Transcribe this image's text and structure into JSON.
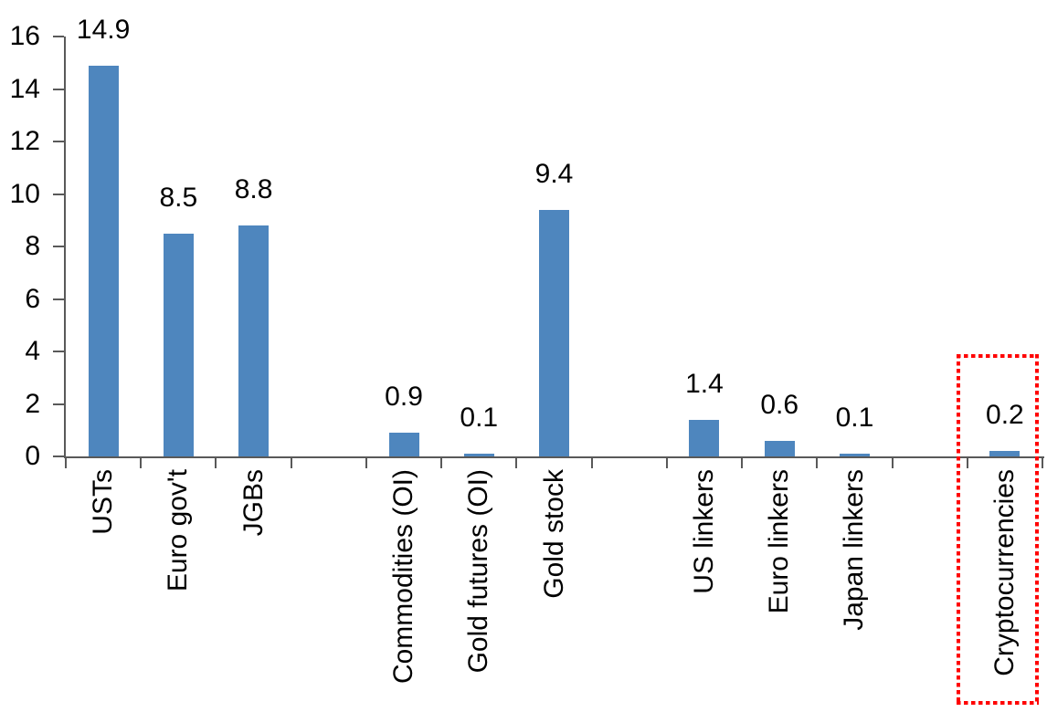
{
  "chart_data": {
    "type": "bar",
    "categories": [
      "USTs",
      "Euro gov't",
      "JGBs",
      "Commodities (OI)",
      "Gold futures (OI)",
      "Gold stock",
      "US linkers",
      "Euro linkers",
      "Japan linkers",
      "Cryptocurrencies"
    ],
    "values": [
      14.9,
      8.5,
      8.8,
      0.9,
      0.1,
      9.4,
      1.4,
      0.6,
      0.1,
      0.2
    ],
    "data_labels": [
      "14.9",
      "8.5",
      "8.8",
      "0.9",
      "0.1",
      "9.4",
      "1.4",
      "0.6",
      "0.1",
      "0.2"
    ],
    "slots": [
      0,
      1,
      2,
      4,
      5,
      6,
      8,
      9,
      10,
      12
    ],
    "num_slots": 13,
    "yticks": [
      0,
      2,
      4,
      6,
      8,
      10,
      12,
      14,
      16
    ],
    "ylim": [
      0,
      16
    ],
    "grid": false,
    "legend": false,
    "category_label_rotation_deg": 90,
    "highlight": {
      "category": "Cryptocurrencies",
      "style": "dotted-box",
      "color": "#FF0000"
    },
    "colors": {
      "bar": "#4E86BE",
      "axis": "#595959",
      "text": "#000000"
    }
  }
}
